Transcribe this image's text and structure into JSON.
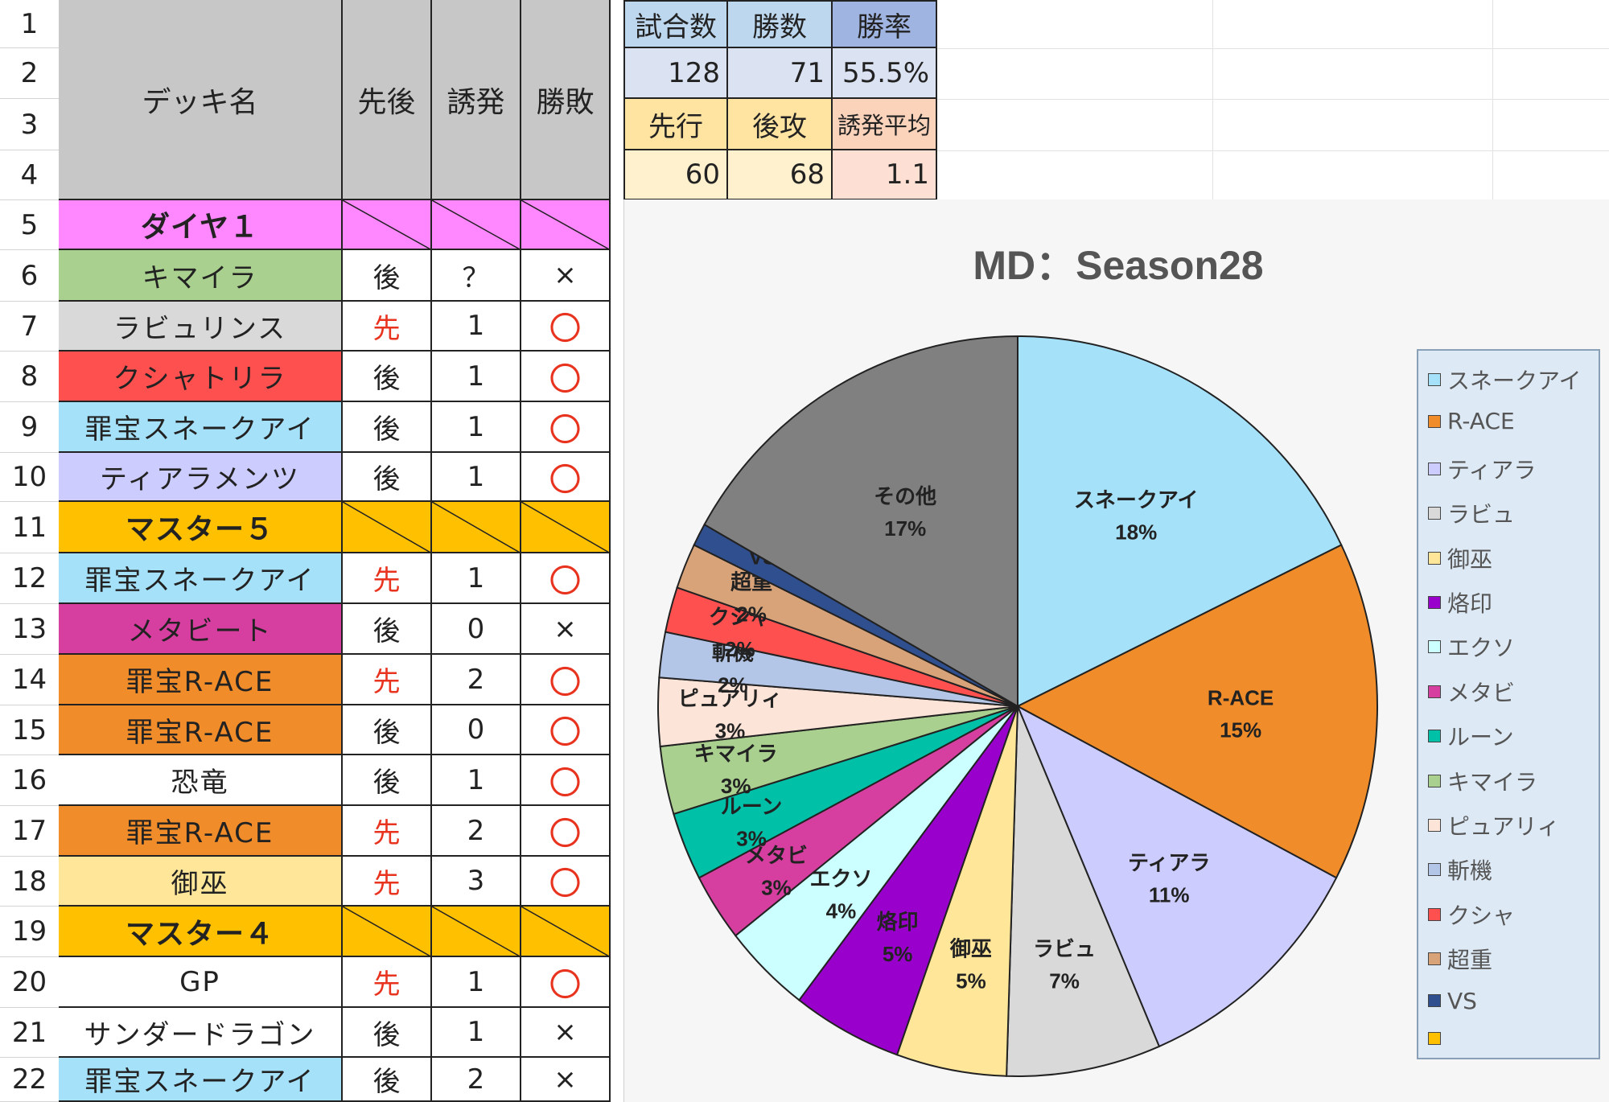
{
  "headers": {
    "deck": "デッキ名",
    "order": "先後",
    "induce": "誘発",
    "result": "勝敗"
  },
  "row_numbers": [
    "1",
    "2",
    "3",
    "4",
    "5",
    "6",
    "7",
    "8",
    "9",
    "10",
    "11",
    "12",
    "13",
    "14",
    "15",
    "16",
    "17",
    "18",
    "19",
    "20",
    "21",
    "22"
  ],
  "stats": {
    "games_label": "試合数",
    "wins_label": "勝数",
    "winrate_label": "勝率",
    "games": "128",
    "wins": "71",
    "winrate": "55.5%",
    "first_label": "先行",
    "second_label": "後攻",
    "induce_avg_label": "誘発平均",
    "first": "60",
    "second": "68",
    "induce_avg": "1.1"
  },
  "colors": {
    "section_diamond": "#ff87ff",
    "section_master": "#ffc000",
    "header_gray": "#c7c7c7",
    "stat_blue": "#bdd7ee",
    "stat_blue_dark": "#9fb4e0",
    "stat_blue_light": "#dbe3f3",
    "stat_yellow": "#ffe3a1",
    "stat_orange": "#fbd3bb",
    "stat_yellow_light": "#fff1cd",
    "stat_peach": "#fde0d3"
  },
  "rows": [
    {
      "type": "section",
      "name": "ダイヤ１",
      "color": "#ff87ff"
    },
    {
      "type": "game",
      "deck": "キマイラ",
      "color": "#a9d08e",
      "order": "後",
      "induce": "？",
      "result": "×"
    },
    {
      "type": "game",
      "deck": "ラビュリンス",
      "color": "#d9d9d9",
      "order": "先",
      "induce": "1",
      "result": "〇"
    },
    {
      "type": "game",
      "deck": "クシャトリラ",
      "color": "#ff5050",
      "order": "後",
      "induce": "1",
      "result": "〇"
    },
    {
      "type": "game",
      "deck": "罪宝スネークアイ",
      "color": "#a6e1fa",
      "order": "後",
      "induce": "1",
      "result": "〇"
    },
    {
      "type": "game",
      "deck": "ティアラメンツ",
      "color": "#ccccff",
      "order": "後",
      "induce": "1",
      "result": "〇"
    },
    {
      "type": "section",
      "name": "マスター５",
      "color": "#ffc000"
    },
    {
      "type": "game",
      "deck": "罪宝スネークアイ",
      "color": "#a6e1fa",
      "order": "先",
      "induce": "1",
      "result": "〇"
    },
    {
      "type": "game",
      "deck": "メタビート",
      "color": "#d63e9f",
      "order": "後",
      "induce": "0",
      "result": "×"
    },
    {
      "type": "game",
      "deck": "罪宝R-ACE",
      "color": "#f08c2a",
      "order": "先",
      "induce": "2",
      "result": "〇"
    },
    {
      "type": "game",
      "deck": "罪宝R-ACE",
      "color": "#f08c2a",
      "order": "後",
      "induce": "0",
      "result": "〇"
    },
    {
      "type": "game",
      "deck": "恐竜",
      "color": "#ffffff",
      "order": "後",
      "induce": "1",
      "result": "〇"
    },
    {
      "type": "game",
      "deck": "罪宝R-ACE",
      "color": "#f08c2a",
      "order": "先",
      "induce": "2",
      "result": "〇"
    },
    {
      "type": "game",
      "deck": "御巫",
      "color": "#ffe699",
      "order": "先",
      "induce": "3",
      "result": "〇"
    },
    {
      "type": "section",
      "name": "マスター４",
      "color": "#ffc000"
    },
    {
      "type": "game",
      "deck": "GP",
      "color": "#ffffff",
      "order": "先",
      "induce": "1",
      "result": "〇"
    },
    {
      "type": "game",
      "deck": "サンダードラゴン",
      "color": "#ffffff",
      "order": "後",
      "induce": "1",
      "result": "×"
    },
    {
      "type": "game",
      "deck": "罪宝スネークアイ",
      "color": "#a6e1fa",
      "order": "後",
      "induce": "2",
      "result": "×"
    }
  ],
  "chart_data": {
    "type": "pie",
    "title": "MD：Season28",
    "legend_position": "right",
    "slices": [
      {
        "name": "スネークアイ",
        "label": "スネークアイ",
        "pct_label": "18%",
        "value": 18,
        "color": "#a6e1fa"
      },
      {
        "name": "R-ACE",
        "label": "R-ACE",
        "pct_label": "15%",
        "value": 15,
        "color": "#f08c2a"
      },
      {
        "name": "ティアラ",
        "label": "ティアラ",
        "pct_label": "11%",
        "value": 11,
        "color": "#ccccff"
      },
      {
        "name": "ラビュ",
        "label": "ラビュ",
        "pct_label": "7%",
        "value": 7,
        "color": "#d9d9d9"
      },
      {
        "name": "御巫",
        "label": "御巫",
        "pct_label": "5%",
        "value": 5,
        "color": "#ffe699"
      },
      {
        "name": "烙印",
        "label": "烙印",
        "pct_label": "5%",
        "value": 5,
        "color": "#9900cc"
      },
      {
        "name": "エクソ",
        "label": "エクソ",
        "pct_label": "4%",
        "value": 4,
        "color": "#ccffff"
      },
      {
        "name": "メタビ",
        "label": "メタビ",
        "pct_label": "3%",
        "value": 3,
        "color": "#d63e9f"
      },
      {
        "name": "ルーン",
        "label": "ルーン",
        "pct_label": "3%",
        "value": 3,
        "color": "#00c0a8"
      },
      {
        "name": "キマイラ",
        "label": "キマイラ",
        "pct_label": "3%",
        "value": 3,
        "color": "#a9d08e"
      },
      {
        "name": "ピュアリィ",
        "label": "ピュアリィ",
        "pct_label": "3%",
        "value": 3,
        "color": "#fde4d8"
      },
      {
        "name": "斬機",
        "label": "斬機",
        "pct_label": "2%",
        "value": 2,
        "color": "#b4c6e7"
      },
      {
        "name": "クシャ",
        "label": "クシャ",
        "pct_label": "2%",
        "value": 2,
        "color": "#ff5050"
      },
      {
        "name": "超重",
        "label": "超重",
        "pct_label": "2%",
        "value": 2,
        "color": "#d9a37a"
      },
      {
        "name": "VS",
        "label": "VS",
        "pct_label": "",
        "value": 1,
        "color": "#2f4f8f"
      },
      {
        "name": "その他",
        "label": "その他",
        "pct_label": "17%",
        "value": 17,
        "color": "#808080"
      }
    ],
    "legend": [
      {
        "name": "スネークアイ",
        "color": "#a6e1fa"
      },
      {
        "name": "R-ACE",
        "color": "#f08c2a"
      },
      {
        "name": "ティアラ",
        "color": "#ccccff"
      },
      {
        "name": "ラビュ",
        "color": "#d9d9d9"
      },
      {
        "name": "御巫",
        "color": "#ffe699"
      },
      {
        "name": "烙印",
        "color": "#9900cc"
      },
      {
        "name": "エクソ",
        "color": "#ccffff"
      },
      {
        "name": "メタビ",
        "color": "#d63e9f"
      },
      {
        "name": "ルーン",
        "color": "#00c0a8"
      },
      {
        "name": "キマイラ",
        "color": "#a9d08e"
      },
      {
        "name": "ピュアリィ",
        "color": "#fde4d8"
      },
      {
        "name": "斬機",
        "color": "#b4c6e7"
      },
      {
        "name": "クシャ",
        "color": "#ff5050"
      },
      {
        "name": "超重",
        "color": "#d9a37a"
      },
      {
        "name": "VS",
        "color": "#2f4f8f"
      },
      {
        "name": "",
        "color": "#ffc000"
      }
    ]
  }
}
